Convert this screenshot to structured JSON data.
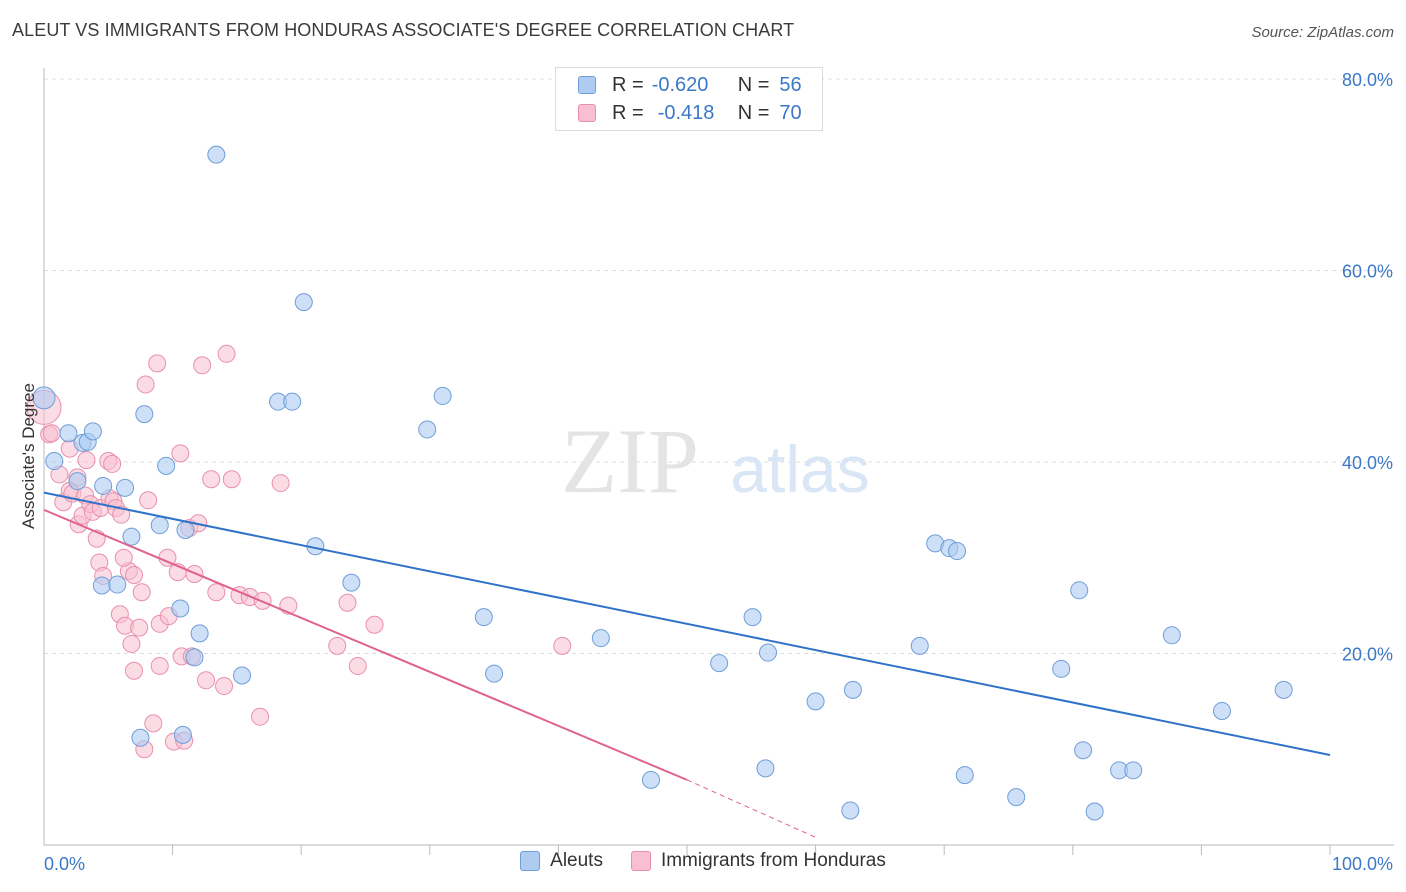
{
  "title": "ALEUT VS IMMIGRANTS FROM HONDURAS ASSOCIATE'S DEGREE CORRELATION CHART",
  "source": "Source: ZipAtlas.com",
  "watermark": {
    "zip": "ZIP",
    "atlas": "atlas"
  },
  "colors": {
    "blue_fill": "#aecbf2",
    "blue_stroke": "#6f9ed8",
    "blue_line": "#2f73c9",
    "pink_fill": "#f7bfd0",
    "pink_stroke": "#e98fae",
    "pink_line": "#e0628f",
    "axis_text": "#3b78c8",
    "grid": "#dddddd"
  },
  "legend_top": {
    "rows": [
      {
        "r_label": "R =",
        "r_value": "-0.620",
        "n_label": "N =",
        "n_value": "56"
      },
      {
        "r_label": "R =",
        "r_value": "-0.418",
        "n_label": "N =",
        "n_value": "70"
      }
    ]
  },
  "legend_bottom": [
    "Aleuts",
    "Immigrants from Honduras"
  ],
  "chart_data": {
    "type": "scatter",
    "title": "ALEUT VS IMMIGRANTS FROM HONDURAS ASSOCIATE'S DEGREE CORRELATION CHART",
    "xlabel": "",
    "ylabel": "Associate's Degree",
    "xlim": [
      0,
      100
    ],
    "ylim": [
      0,
      80
    ],
    "x_tick_labels": [
      "0.0%",
      "100.0%"
    ],
    "y_ticks": [
      20,
      40,
      60,
      80
    ],
    "y_tick_labels": [
      "20.0%",
      "40.0%",
      "60.0%",
      "80.0%"
    ],
    "grid": "horizontal dashed",
    "legend_placement": "bottom-center",
    "series": [
      {
        "name": "Aleuts",
        "color": "#aecbf2",
        "trend": {
          "x": [
            0,
            100
          ],
          "y": [
            36.8,
            9.4
          ],
          "style": "solid"
        },
        "points": [
          [
            0,
            46.7
          ],
          [
            0.8,
            40.1
          ],
          [
            1.9,
            43.0
          ],
          [
            2.6,
            38.0
          ],
          [
            3.0,
            42.0
          ],
          [
            3.4,
            42.1
          ],
          [
            3.8,
            43.2
          ],
          [
            4.6,
            37.5
          ],
          [
            4.5,
            27.1
          ],
          [
            5.7,
            27.2
          ],
          [
            6.3,
            37.3
          ],
          [
            6.8,
            32.2
          ],
          [
            7.5,
            11.2
          ],
          [
            7.8,
            45.0
          ],
          [
            9.0,
            33.4
          ],
          [
            9.5,
            39.6
          ],
          [
            10.6,
            24.7
          ],
          [
            10.8,
            11.5
          ],
          [
            11.0,
            32.9
          ],
          [
            11.7,
            19.6
          ],
          [
            12.1,
            22.1
          ],
          [
            13.4,
            72.1
          ],
          [
            15.4,
            17.7
          ],
          [
            18.2,
            46.3
          ],
          [
            19.3,
            46.3
          ],
          [
            20.2,
            56.7
          ],
          [
            21.1,
            31.2
          ],
          [
            23.9,
            27.4
          ],
          [
            29.8,
            43.4
          ],
          [
            31.0,
            46.9
          ],
          [
            34.2,
            23.8
          ],
          [
            35.0,
            17.9
          ],
          [
            43.3,
            21.6
          ],
          [
            47.2,
            6.8
          ],
          [
            52.5,
            19.0
          ],
          [
            55.1,
            23.8
          ],
          [
            56.1,
            8.0
          ],
          [
            56.3,
            20.1
          ],
          [
            62.7,
            3.6
          ],
          [
            62.9,
            16.2
          ],
          [
            68.1,
            20.8
          ],
          [
            69.3,
            31.5
          ],
          [
            70.4,
            31.0
          ],
          [
            71.0,
            30.7
          ],
          [
            71.6,
            7.3
          ],
          [
            75.6,
            5.0
          ],
          [
            79.1,
            18.4
          ],
          [
            80.5,
            26.6
          ],
          [
            80.8,
            9.9
          ],
          [
            81.7,
            3.5
          ],
          [
            83.6,
            7.8
          ],
          [
            84.7,
            7.8
          ],
          [
            87.7,
            21.9
          ],
          [
            91.6,
            14.0
          ],
          [
            96.4,
            16.2
          ],
          [
            60.0,
            15.0
          ]
        ]
      },
      {
        "name": "Immigrants from Honduras",
        "color": "#f7bfd0",
        "trend": {
          "x": [
            0,
            50
          ],
          "y": [
            35.0,
            6.8
          ],
          "style": "solid",
          "dashed_extension_to": [
            60,
            0.8
          ]
        },
        "points": [
          [
            0,
            45.7
          ],
          [
            0.4,
            42.9
          ],
          [
            0.6,
            43.0
          ],
          [
            1.2,
            38.7
          ],
          [
            1.5,
            35.8
          ],
          [
            2.0,
            41.4
          ],
          [
            2.0,
            37.0
          ],
          [
            2.2,
            36.7
          ],
          [
            2.6,
            38.4
          ],
          [
            2.7,
            33.5
          ],
          [
            3.0,
            34.4
          ],
          [
            3.2,
            36.5
          ],
          [
            3.3,
            40.2
          ],
          [
            3.6,
            35.6
          ],
          [
            3.8,
            34.8
          ],
          [
            4.1,
            32.0
          ],
          [
            4.3,
            29.5
          ],
          [
            4.4,
            35.2
          ],
          [
            4.6,
            28.1
          ],
          [
            5.0,
            40.1
          ],
          [
            5.1,
            36.2
          ],
          [
            5.3,
            39.8
          ],
          [
            5.4,
            35.9
          ],
          [
            5.6,
            35.2
          ],
          [
            5.9,
            24.1
          ],
          [
            6.0,
            34.5
          ],
          [
            6.3,
            22.9
          ],
          [
            6.6,
            28.6
          ],
          [
            6.8,
            21.0
          ],
          [
            7.0,
            28.2
          ],
          [
            7.0,
            18.2
          ],
          [
            7.4,
            22.7
          ],
          [
            7.6,
            26.4
          ],
          [
            7.8,
            10.0
          ],
          [
            7.9,
            48.1
          ],
          [
            8.1,
            36.0
          ],
          [
            8.5,
            12.7
          ],
          [
            8.8,
            50.3
          ],
          [
            9.0,
            23.1
          ],
          [
            9.0,
            18.7
          ],
          [
            9.6,
            30.0
          ],
          [
            9.7,
            23.9
          ],
          [
            10.1,
            10.8
          ],
          [
            10.4,
            28.5
          ],
          [
            10.6,
            40.9
          ],
          [
            10.7,
            19.7
          ],
          [
            10.9,
            10.9
          ],
          [
            11.3,
            33.1
          ],
          [
            11.5,
            19.7
          ],
          [
            11.7,
            28.3
          ],
          [
            12.0,
            33.6
          ],
          [
            12.3,
            50.1
          ],
          [
            12.6,
            17.2
          ],
          [
            13.0,
            38.2
          ],
          [
            13.4,
            26.4
          ],
          [
            14.0,
            16.6
          ],
          [
            14.2,
            51.3
          ],
          [
            14.6,
            38.2
          ],
          [
            15.2,
            26.1
          ],
          [
            16.0,
            25.9
          ],
          [
            16.8,
            13.4
          ],
          [
            17.0,
            25.5
          ],
          [
            18.4,
            37.8
          ],
          [
            19.0,
            25.0
          ],
          [
            22.8,
            20.8
          ],
          [
            23.6,
            25.3
          ],
          [
            24.4,
            18.7
          ],
          [
            25.7,
            23.0
          ],
          [
            40.3,
            20.8
          ],
          [
            6.2,
            30.0
          ]
        ]
      }
    ]
  }
}
